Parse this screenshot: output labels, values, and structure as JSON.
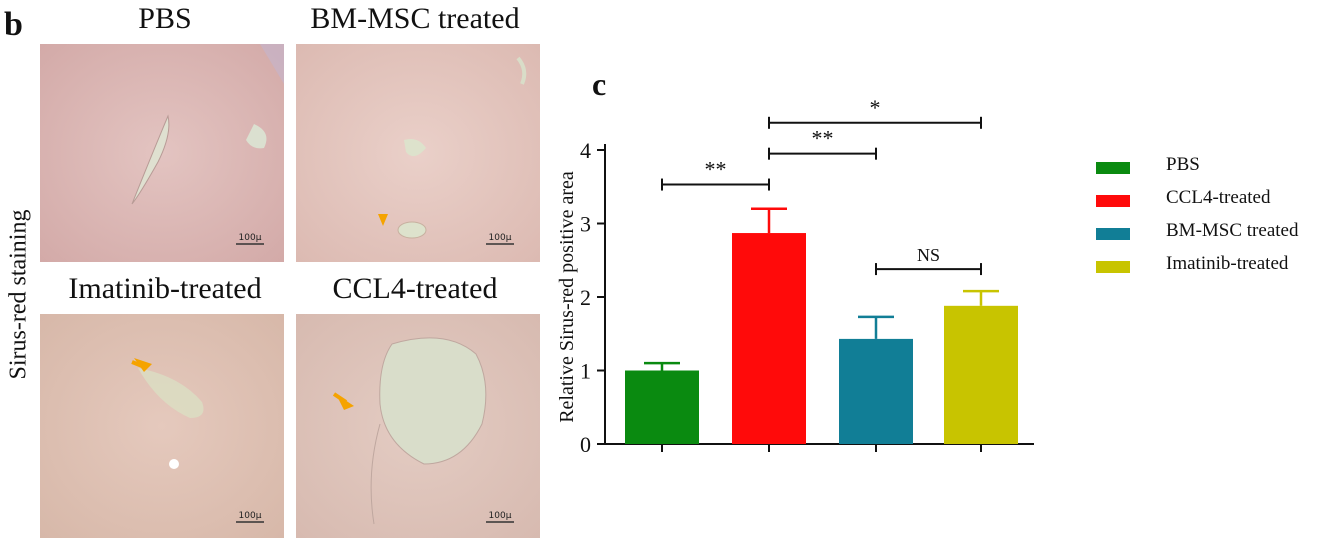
{
  "panels": {
    "b_label": "b",
    "c_label": "c",
    "side_label": "Sirus-red staining",
    "micrographs": [
      {
        "title": "PBS",
        "scale": "100µ"
      },
      {
        "title": "BM-MSC treated",
        "scale": "100µ"
      },
      {
        "title": "Imatinib-treated",
        "scale": "100µ"
      },
      {
        "title": "CCL4-treated",
        "scale": "100µ"
      }
    ]
  },
  "chart_data": {
    "type": "bar",
    "ylabel": "Relative Sirus-red positive area",
    "xlabel": "",
    "ylim": [
      0,
      4
    ],
    "yticks": [
      0,
      1,
      2,
      3,
      4
    ],
    "categories": [
      "PBS",
      "CCL4-treated",
      "BM-MSC treated",
      "Imatinib-treated"
    ],
    "values": [
      1.0,
      2.87,
      1.43,
      1.88
    ],
    "errors": [
      0.1,
      0.33,
      0.3,
      0.2
    ],
    "colors": [
      "#0a8a10",
      "#ff0a0a",
      "#117e96",
      "#c8c400"
    ],
    "legend": {
      "position": "right",
      "entries": [
        "PBS",
        "CCL4-treated",
        "BM-MSC treated",
        "Imatinib-treated"
      ]
    },
    "significance": [
      {
        "from": 0,
        "to": 1,
        "label": "**",
        "level": 3.53
      },
      {
        "from": 1,
        "to": 2,
        "label": "**",
        "level": 3.95
      },
      {
        "from": 1,
        "to": 3,
        "label": "*",
        "level": 4.37
      },
      {
        "from": 2,
        "to": 3,
        "label": "NS",
        "level": 2.38
      }
    ]
  }
}
